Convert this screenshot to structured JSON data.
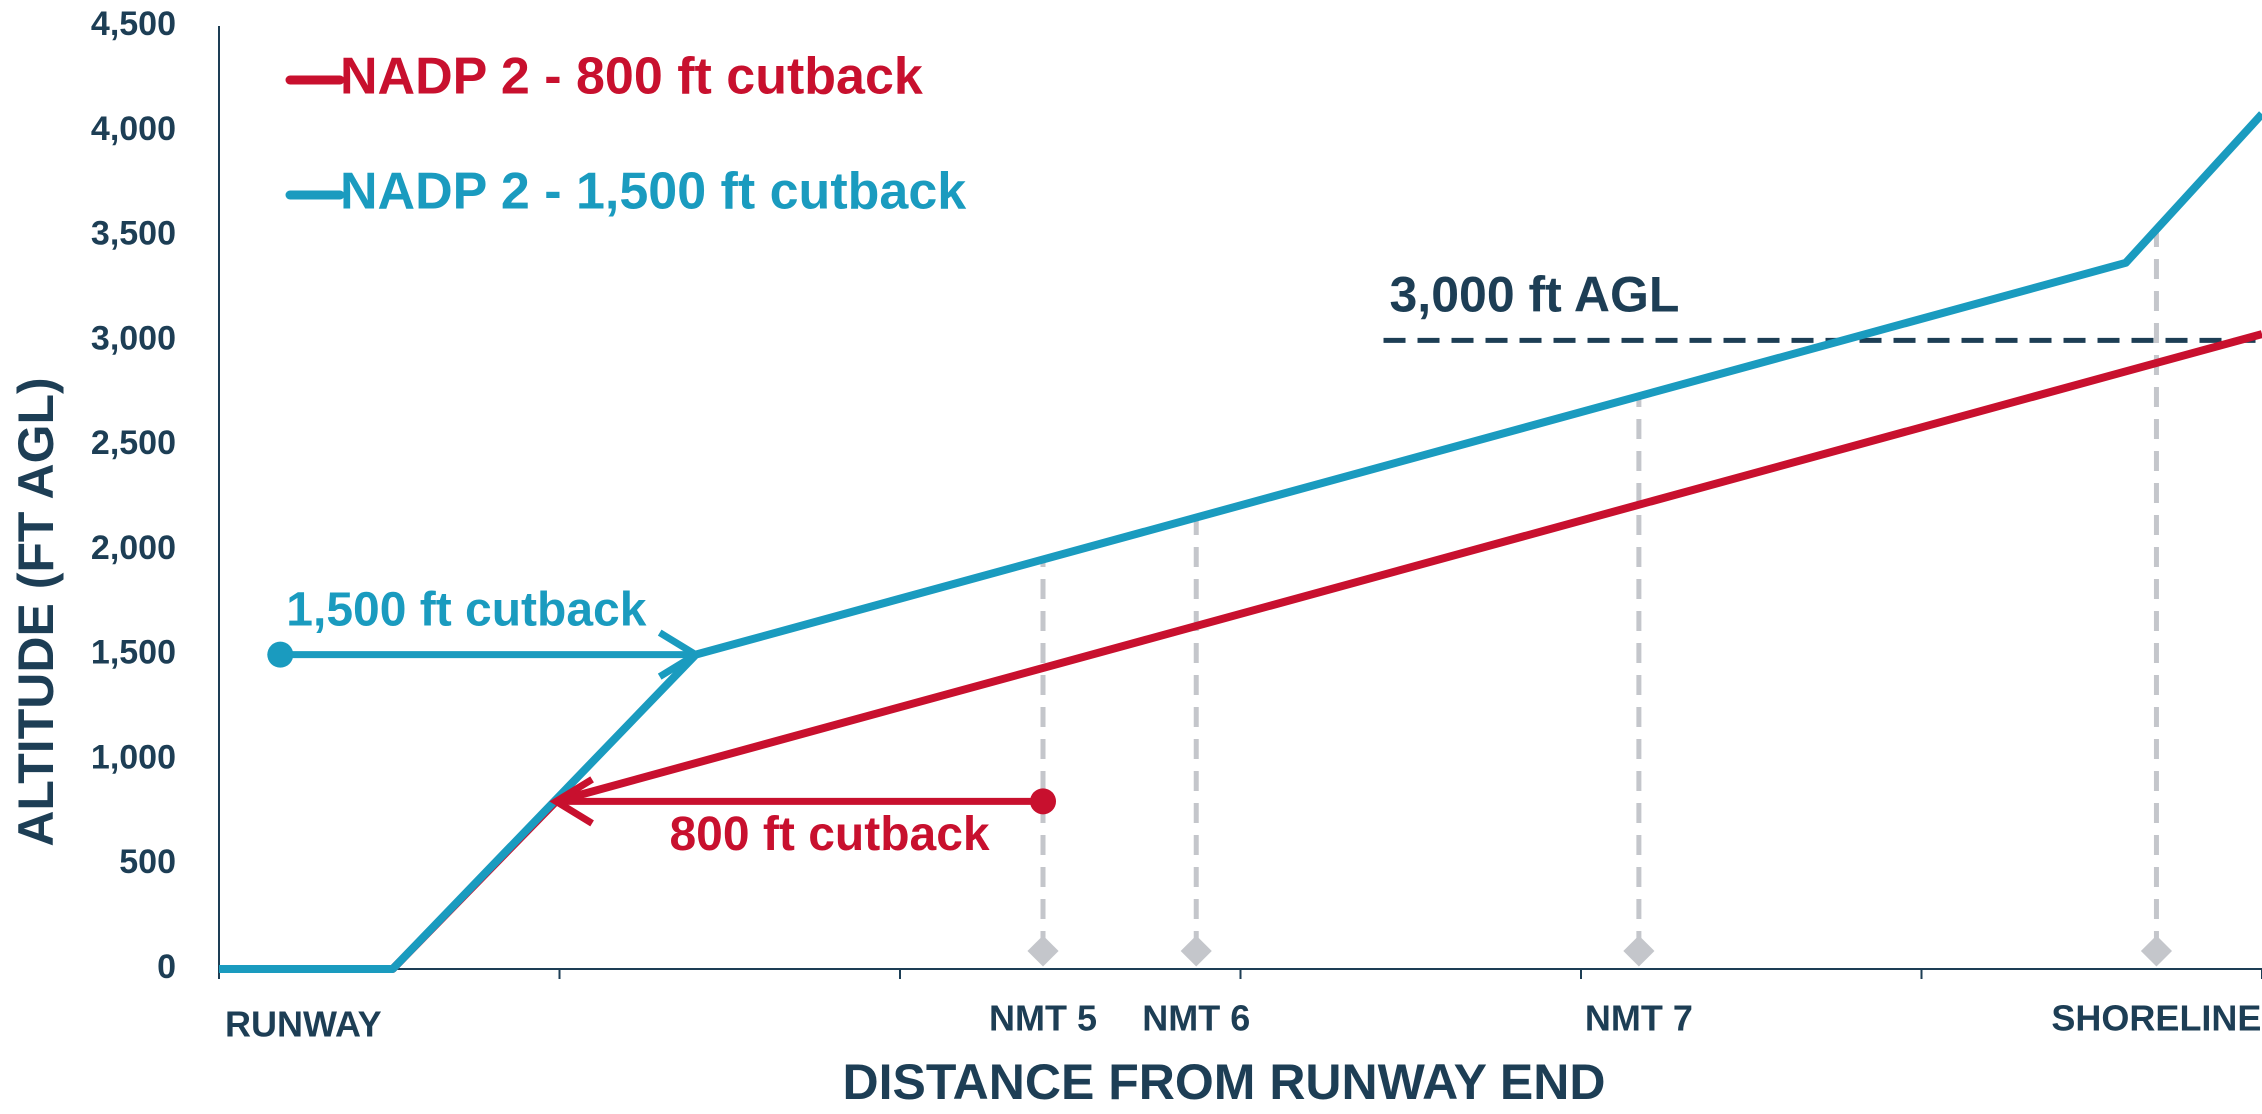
{
  "chart_data": {
    "type": "line",
    "xlabel": "DISTANCE FROM RUNWAY END",
    "ylabel": "ALTITUDE (FT AGL)",
    "xlim": [
      0,
      6
    ],
    "xticks": [
      0,
      1,
      2,
      3,
      4,
      5,
      6
    ],
    "ylim": [
      0,
      4500
    ],
    "yticks": [
      0,
      500,
      {
        "value": 1000,
        "label": "1,000"
      },
      {
        "value": 1500,
        "label": "1,500"
      },
      {
        "value": 2000,
        "label": "2,000"
      },
      {
        "value": 2500,
        "label": "2,500"
      },
      {
        "value": 3000,
        "label": "3,000"
      },
      {
        "value": 3500,
        "label": "3,500"
      },
      {
        "value": 4000,
        "label": "4,000"
      },
      {
        "value": 4500,
        "label": "4,500"
      }
    ],
    "series": [
      {
        "name": "NADP 2 - 800 ft cutback",
        "color": "#c8102e",
        "x": [
          0,
          0.51,
          0.99,
          6
        ],
        "values": [
          0,
          0,
          800,
          3030
        ]
      },
      {
        "name": "NADP 2 - 1,500 ft cutback",
        "color": "#1a9bbf",
        "x": [
          0,
          0.51,
          1.4,
          5.6,
          6
        ],
        "values": [
          0,
          0,
          1500,
          3370,
          4080
        ]
      }
    ],
    "runway_label": "RUNWAY",
    "markers": [
      {
        "label": "NMT 5",
        "x": 2.42
      },
      {
        "label": "NMT 6",
        "x": 2.87
      },
      {
        "label": "NMT 7",
        "x": 4.17
      },
      {
        "label": "SHORELINE",
        "x": 5.69
      }
    ],
    "reference_line": {
      "label": "3,000 ft AGL",
      "y": 3000,
      "x_start": 3.42,
      "color": "#1d3e55"
    },
    "annotations": [
      {
        "text": "1,500 ft cutback",
        "y": 1500,
        "x_start": 0.18,
        "x_end": 1.4,
        "color": "#1a9bbf"
      },
      {
        "text": "800 ft cutback",
        "y": 800,
        "x_start": 2.42,
        "x_end": 0.99,
        "color": "#c8102e"
      }
    ],
    "legend": "upper left"
  }
}
